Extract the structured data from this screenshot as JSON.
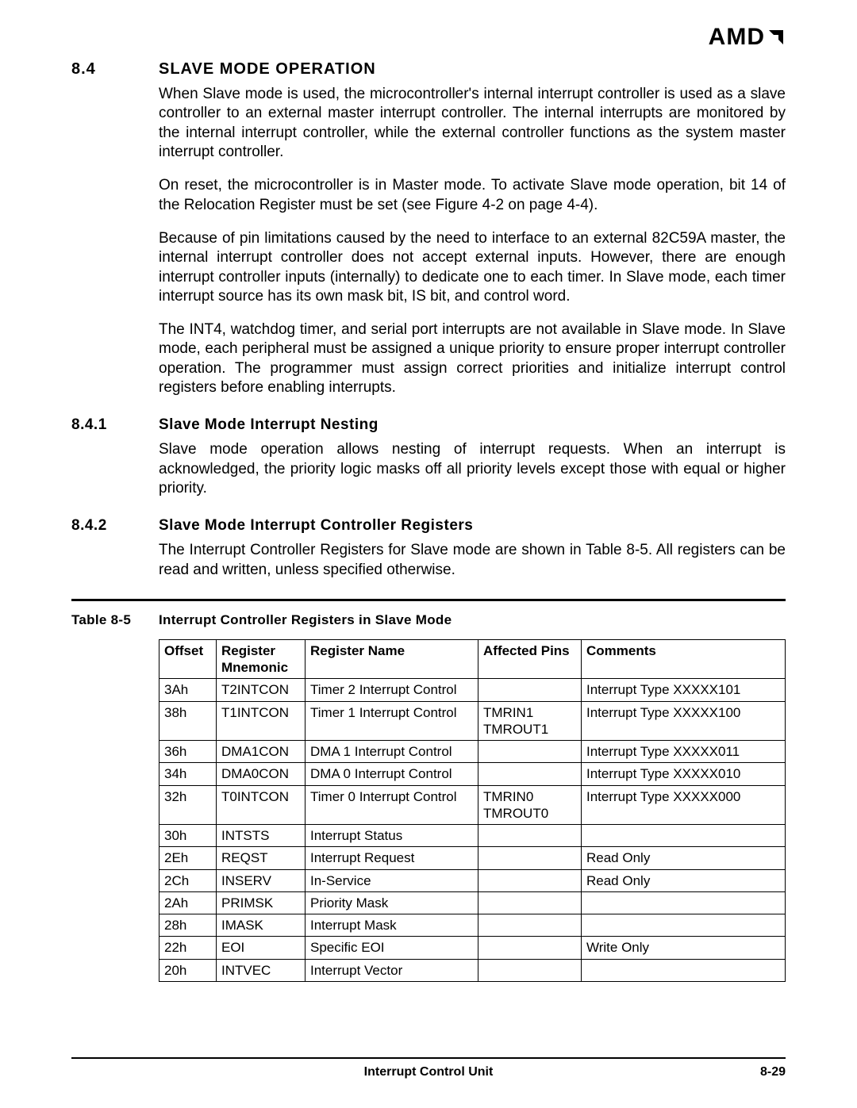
{
  "logo_text": "AMD",
  "section": {
    "num": "8.4",
    "title": "SLAVE MODE OPERATION",
    "paras": [
      "When Slave mode is used, the microcontroller's internal interrupt controller is used as a slave controller to an external master interrupt controller. The internal interrupts are monitored by the internal interrupt controller, while the external controller functions as the system master interrupt controller.",
      "On reset, the microcontroller is in Master mode. To activate Slave mode operation, bit 14 of the Relocation Register must be set (see Figure 4-2 on page 4-4).",
      "Because of pin limitations caused by the need to interface to an external 82C59A master, the internal interrupt controller does not accept external inputs. However, there are enough interrupt controller inputs (internally) to dedicate one to each timer. In Slave mode, each timer interrupt source has its own mask bit, IS bit, and control word.",
      "The INT4, watchdog timer, and serial port interrupts are not available in Slave mode. In Slave mode, each peripheral must be assigned a unique priority to ensure proper interrupt controller operation. The programmer must assign correct priorities and initialize interrupt control registers before enabling interrupts."
    ]
  },
  "sub1": {
    "num": "8.4.1",
    "title": "Slave Mode Interrupt Nesting",
    "para": "Slave mode operation allows nesting of interrupt requests. When an interrupt is acknowledged, the priority logic masks off all priority levels except those with equal or higher priority."
  },
  "sub2": {
    "num": "8.4.2",
    "title": "Slave Mode Interrupt Controller Registers",
    "para": "The Interrupt Controller Registers for Slave mode are shown in Table 8-5. All registers can be read and written, unless specified otherwise."
  },
  "table": {
    "caption_num": "Table 8-5",
    "caption_title": "Interrupt Controller Registers in Slave Mode",
    "columns": [
      "Offset",
      "Register\nMnemonic",
      "Register Name",
      "Affected Pins",
      "Comments"
    ],
    "rows": [
      [
        "3Ah",
        "T2INTCON",
        "Timer 2 Interrupt Control",
        "",
        "Interrupt Type XXXXX101"
      ],
      [
        "38h",
        "T1INTCON",
        "Timer 1 Interrupt Control",
        "TMRIN1\nTMROUT1",
        "Interrupt Type XXXXX100"
      ],
      [
        "36h",
        "DMA1CON",
        "DMA 1 Interrupt Control",
        "",
        "Interrupt Type XXXXX011"
      ],
      [
        "34h",
        "DMA0CON",
        "DMA 0 Interrupt Control",
        "",
        "Interrupt Type XXXXX010"
      ],
      [
        "32h",
        "T0INTCON",
        "Timer 0 Interrupt Control",
        "TMRIN0\nTMROUT0",
        "Interrupt Type XXXXX000"
      ],
      [
        "30h",
        "INTSTS",
        "Interrupt Status",
        "",
        ""
      ],
      [
        "2Eh",
        "REQST",
        "Interrupt Request",
        "",
        "Read Only"
      ],
      [
        "2Ch",
        "INSERV",
        "In-Service",
        "",
        "Read Only"
      ],
      [
        "2Ah",
        "PRIMSK",
        "Priority Mask",
        "",
        ""
      ],
      [
        "28h",
        "IMASK",
        "Interrupt Mask",
        "",
        ""
      ],
      [
        "22h",
        "EOI",
        "Specific EOI",
        "",
        "Write Only"
      ],
      [
        "20h",
        "INTVEC",
        "Interrupt Vector",
        "",
        ""
      ]
    ]
  },
  "footer": {
    "center": "Interrupt Control Unit",
    "right": "8-29"
  },
  "colors": {
    "text": "#000000",
    "bg": "#ffffff",
    "rule": "#000000"
  }
}
